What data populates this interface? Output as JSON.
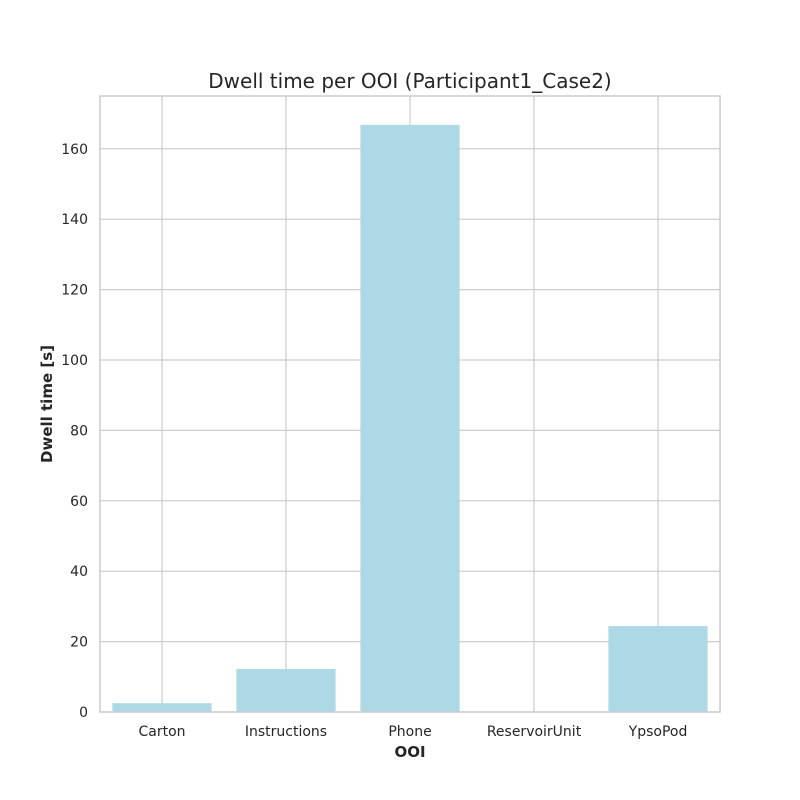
{
  "chart_data": {
    "type": "bar",
    "title": "Dwell time per OOI (Participant1_Case2)",
    "xlabel": "OOI",
    "ylabel": "Dwell time [s]",
    "categories": [
      "Carton",
      "Instructions",
      "Phone",
      "ReservoirUnit",
      "YpsoPod"
    ],
    "values": [
      2.5,
      12.2,
      166.8,
      0,
      24.4
    ],
    "ylim": [
      0,
      175
    ],
    "yticks": [
      0,
      20,
      40,
      60,
      80,
      100,
      120,
      140,
      160
    ],
    "grid": true,
    "bar_color": "#add8e6",
    "grid_color": "#cccccc"
  }
}
